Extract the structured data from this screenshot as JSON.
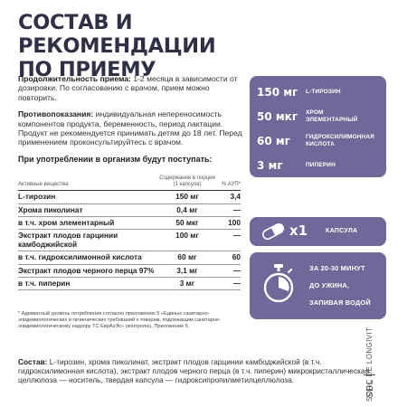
{
  "title": {
    "line1": "СОСТАВ И РЕКОМЕНДАЦИИ",
    "line2": "ПО ПРИЕМУ"
  },
  "duration": {
    "label": "Продолжительность приема:",
    "text": " 1-2 месяца в зависимости от дозировки. По согласованию с врачом, прием можно повторить."
  },
  "contra": {
    "label": "Противопоказания:",
    "text": " индивидуальная непереносимость компонентов продукта, беременность, период лактации. Продукт не рекомендуется принимать детям до 18 лет. Перед применением проконсультируйтесь с врачом."
  },
  "intake_heading": "При употреблении в организм будут поступать:",
  "table": {
    "headers": [
      "Активные вещества",
      "Содержание в порции (1 капсула)",
      "% АУП*"
    ],
    "rows": [
      [
        "L-тирозин",
        "150 мг",
        "3,4"
      ],
      [
        "Хрома пиколинат",
        "0,4 мг",
        "—"
      ],
      [
        "в т.ч. хром элементарный",
        "50 мкг",
        "100"
      ],
      [
        "Экстракт плодов гарцинии камбоджийской",
        "100 мг",
        "—"
      ],
      [
        "в т.ч. гидроксилимонной кислота",
        "60 мг",
        "60"
      ],
      [
        "Экстракт плодов черного перца 97%",
        "3,1 мг",
        "—"
      ],
      [
        "в т.ч. пиперин",
        "3 мг",
        "—"
      ]
    ]
  },
  "footnote": "* Адекватный уровень потребления согласно приложению 5 «Единых санитарно-эпидемиологических и гигиенических требований к товарам, подлежащим санитарно-эпидемиологическому надзору ТС ЕврАзЭс» (контролю), Приложение 5.",
  "composition": {
    "label": "Состав:",
    "text": " L-тирозин, хрома пиколинат, экстракт плодов гарцинии камбоджийской (в т.ч. гидроксилимонная кислота), экстракт плодов черного перца (в т.ч. пиперин) микрокристаллическая целлюлоза — носитель, твердая капсула — гидроксипропилметилцеллюлоза."
  },
  "panel": {
    "items": [
      {
        "value": "150 мг",
        "name": "L-ТИРОЗИН"
      },
      {
        "value": "50 мкг",
        "name": "ХРОМ ЭЛЕМЕНТАРНЫЙ"
      },
      {
        "value": "60 мг",
        "name": "ГИДРОКСИЛИМОННАЯ КИСЛОТА"
      },
      {
        "value": "3 мг",
        "name": "ПИПЕРИН"
      }
    ]
  },
  "capsule": {
    "count": "x1",
    "label": "КАПСУЛА",
    "icon": "capsule-icon"
  },
  "timing": {
    "line1": "ЗА 20-30 МИНУТ",
    "line2": "ДО УЖИНА,",
    "line3": "ЗАПИВАЯ ВОДОЙ",
    "icon": "stopwatch-icon"
  },
  "brand": {
    "name": "SORC DE LONGIVIT",
    "logo": "SDL"
  },
  "colors": {
    "accent": "#6e6998",
    "title": "#2f2f45"
  }
}
